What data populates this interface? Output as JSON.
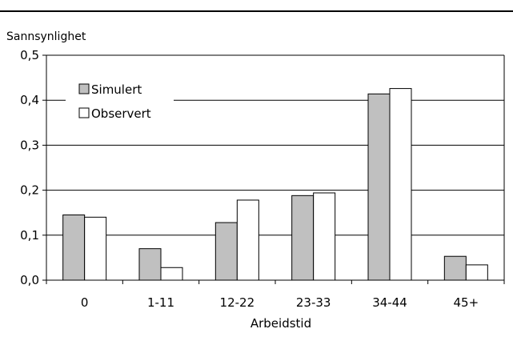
{
  "chart_data": {
    "type": "bar",
    "title": "",
    "ylabel": "Sannsynlighet",
    "xlabel": "Arbeidstid",
    "categories": [
      "0",
      "1-11",
      "12-22",
      "23-33",
      "34-44",
      "45+"
    ],
    "ylim": [
      0,
      0.5
    ],
    "yticks": [
      0.0,
      0.1,
      0.2,
      0.3,
      0.4,
      0.5
    ],
    "ytick_labels": [
      "0,0",
      "0,1",
      "0,2",
      "0,3",
      "0,4",
      "0,5"
    ],
    "grid": true,
    "legend_position": "top-left",
    "series": [
      {
        "name": "Simulert",
        "values": [
          0.145,
          0.07,
          0.128,
          0.188,
          0.414,
          0.053
        ],
        "color": "#c0c0c0"
      },
      {
        "name": "Observert",
        "values": [
          0.14,
          0.028,
          0.178,
          0.194,
          0.426,
          0.034
        ],
        "color": "#ffffff"
      }
    ]
  }
}
